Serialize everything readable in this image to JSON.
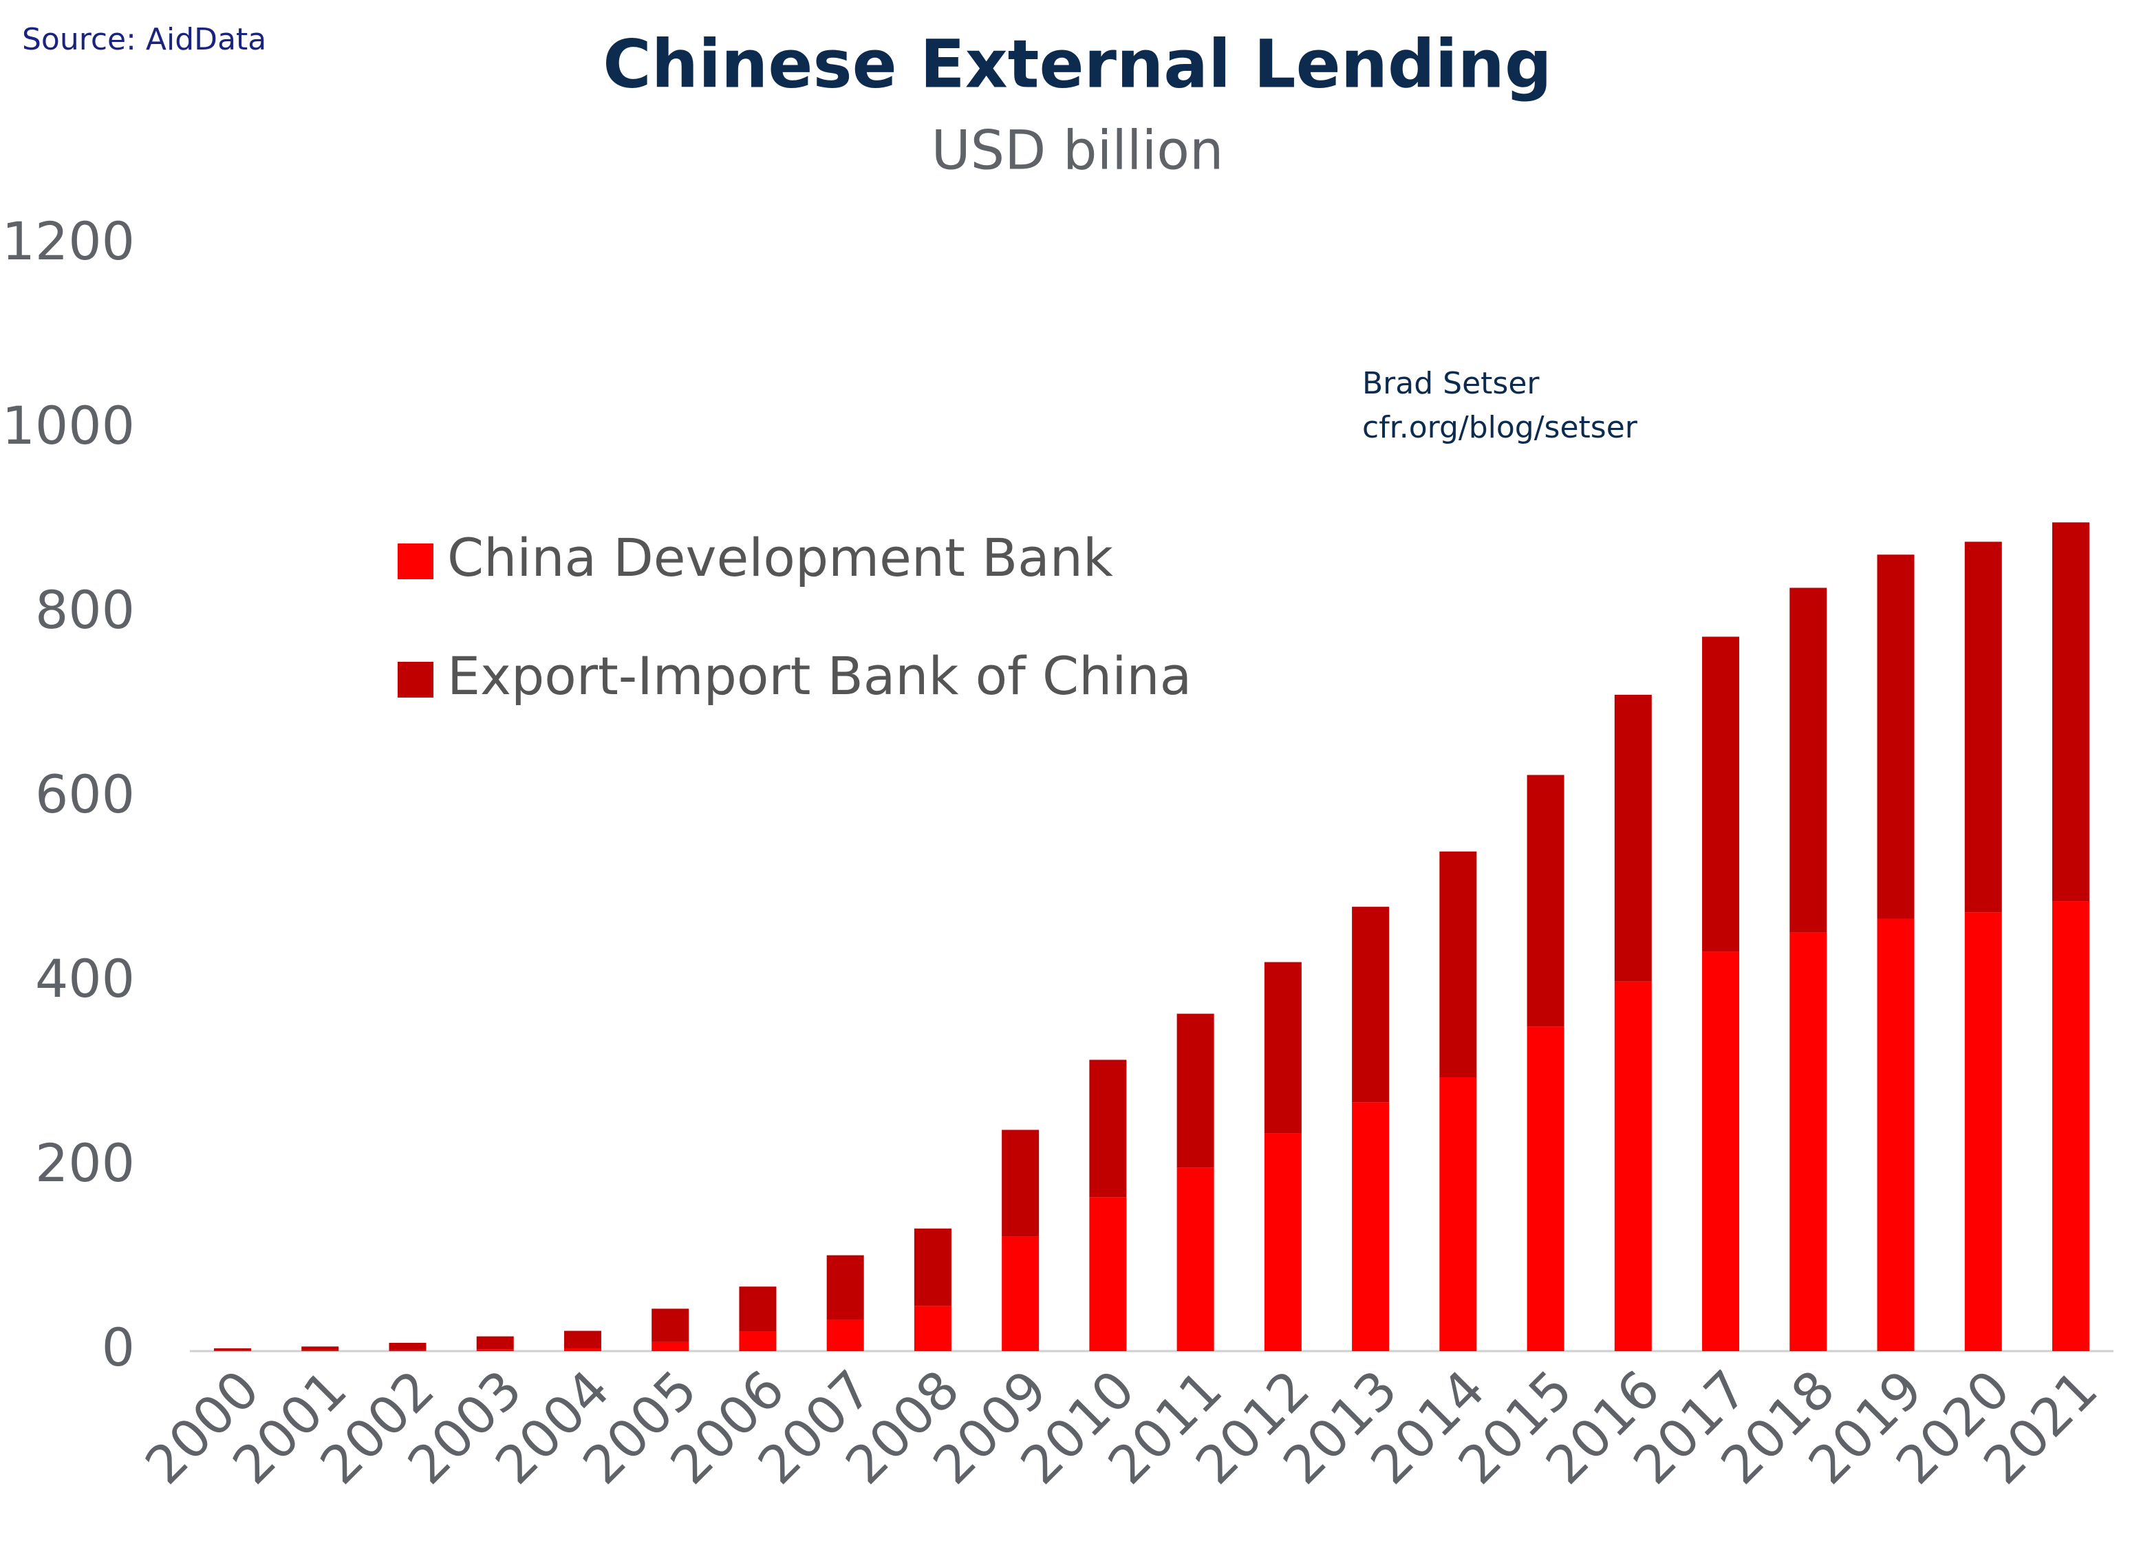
{
  "chart_data": {
    "type": "bar",
    "stacked": true,
    "title": "Chinese External Lending",
    "subtitle": "USD billion",
    "source": "Source: AidData",
    "annotations": [
      "Brad Setser",
      "cfr.org/blog/setser"
    ],
    "categories": [
      "2000",
      "2001",
      "2002",
      "2003",
      "2004",
      "2005",
      "2006",
      "2007",
      "2008",
      "2009",
      "2010",
      "2011",
      "2012",
      "2013",
      "2014",
      "2015",
      "2016",
      "2017",
      "2018",
      "2019",
      "2020",
      "2021"
    ],
    "series": [
      {
        "name": "China Development Bank",
        "color": "#ff0000",
        "values": [
          1,
          1,
          1,
          2,
          3,
          10,
          21,
          34,
          49,
          124,
          167,
          199,
          236,
          270,
          297,
          352,
          401,
          433,
          454,
          469,
          476,
          488
        ]
      },
      {
        "name": "Export-Import Bank of China",
        "color": "#c00000",
        "values": [
          2,
          4,
          8,
          14,
          19,
          36,
          49,
          70,
          84,
          116,
          149,
          167,
          186,
          212,
          245,
          273,
          311,
          342,
          374,
          395,
          402,
          411
        ]
      }
    ],
    "ylim": [
      0,
      1200
    ],
    "yticks": [
      0,
      200,
      400,
      600,
      800,
      1000,
      1200
    ],
    "grid": false
  }
}
